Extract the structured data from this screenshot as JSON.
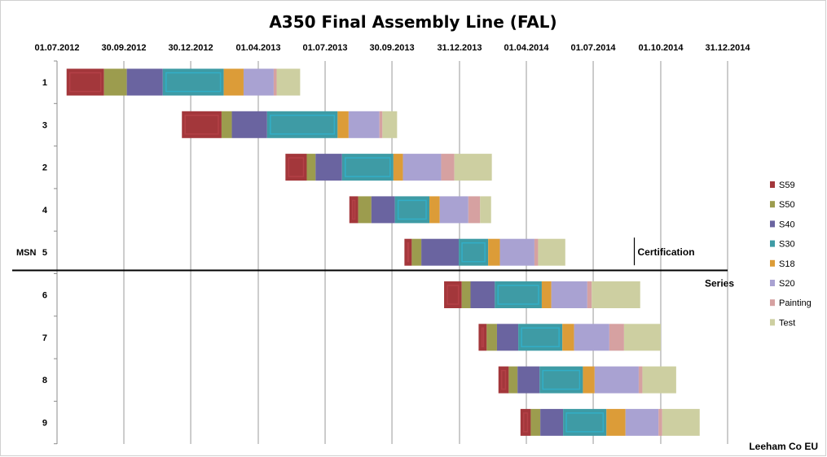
{
  "chart_data": {
    "type": "bar",
    "orientation": "horizontal-stacked-gantt",
    "title": "A350 Final Assembly Line (FAL)",
    "x_axis": {
      "tick_labels": [
        "01.07.2012",
        "30.09.2012",
        "30.12.2012",
        "01.04.2013",
        "01.07.2013",
        "30.09.2013",
        "31.12.2013",
        "01.04.2014",
        "01.07.2014",
        "01.10.2014",
        "31.12.2014"
      ],
      "range": [
        "2012-07-01",
        "2014-12-31"
      ],
      "position": "top",
      "grid": true
    },
    "y_axis": {
      "label": "MSN",
      "categories": [
        "1",
        "3",
        "2",
        "4",
        "5",
        "6",
        "7",
        "8",
        "9"
      ]
    },
    "legend": {
      "placement": "right",
      "items": [
        {
          "name": "S59",
          "color": "#a3373b"
        },
        {
          "name": "S50",
          "color": "#9c9c4e"
        },
        {
          "name": "S40",
          "color": "#6a64a0"
        },
        {
          "name": "S30",
          "color": "#3e9ba5"
        },
        {
          "name": "S18",
          "color": "#dc9c38"
        },
        {
          "name": "S20",
          "color": "#a9a2d2"
        },
        {
          "name": "Painting",
          "color": "#d6a1a1"
        },
        {
          "name": "Test",
          "color": "#cdcfa1"
        }
      ]
    },
    "series": [
      {
        "msn": "1",
        "segments": [
          {
            "stage": "S59",
            "start": "2012-07-14",
            "end": "2012-09-03"
          },
          {
            "stage": "S50",
            "start": "2012-09-03",
            "end": "2012-10-04"
          },
          {
            "stage": "S40",
            "start": "2012-10-04",
            "end": "2012-11-22"
          },
          {
            "stage": "S30",
            "start": "2012-11-22",
            "end": "2013-02-13"
          },
          {
            "stage": "S18",
            "start": "2013-02-13",
            "end": "2013-03-12"
          },
          {
            "stage": "S20",
            "start": "2013-03-12",
            "end": "2013-04-22"
          },
          {
            "stage": "Painting",
            "start": "2013-04-22",
            "end": "2013-04-26"
          },
          {
            "stage": "Test",
            "start": "2013-04-26",
            "end": "2013-05-28"
          }
        ]
      },
      {
        "msn": "3",
        "segments": [
          {
            "stage": "S59",
            "start": "2012-12-18",
            "end": "2013-02-10"
          },
          {
            "stage": "S50",
            "start": "2013-02-10",
            "end": "2013-02-24"
          },
          {
            "stage": "S40",
            "start": "2013-02-24",
            "end": "2013-04-13"
          },
          {
            "stage": "S30",
            "start": "2013-04-13",
            "end": "2013-07-18"
          },
          {
            "stage": "S18",
            "start": "2013-07-18",
            "end": "2013-08-02"
          },
          {
            "stage": "S20",
            "start": "2013-08-02",
            "end": "2013-09-13"
          },
          {
            "stage": "Painting",
            "start": "2013-09-13",
            "end": "2013-09-17"
          },
          {
            "stage": "Test",
            "start": "2013-09-17",
            "end": "2013-10-07"
          }
        ]
      },
      {
        "msn": "2",
        "segments": [
          {
            "stage": "S59",
            "start": "2013-05-08",
            "end": "2013-06-06"
          },
          {
            "stage": "S50",
            "start": "2013-06-06",
            "end": "2013-06-18"
          },
          {
            "stage": "S40",
            "start": "2013-06-18",
            "end": "2013-07-24"
          },
          {
            "stage": "S30",
            "start": "2013-07-24",
            "end": "2013-10-02"
          },
          {
            "stage": "S18",
            "start": "2013-10-02",
            "end": "2013-10-15"
          },
          {
            "stage": "S20",
            "start": "2013-10-15",
            "end": "2013-12-06"
          },
          {
            "stage": "Painting",
            "start": "2013-12-06",
            "end": "2013-12-24"
          },
          {
            "stage": "Test",
            "start": "2013-12-24",
            "end": "2014-02-13"
          }
        ]
      },
      {
        "msn": "4",
        "segments": [
          {
            "stage": "S59",
            "start": "2013-08-03",
            "end": "2013-08-15"
          },
          {
            "stage": "S50",
            "start": "2013-08-15",
            "end": "2013-09-02"
          },
          {
            "stage": "S40",
            "start": "2013-09-02",
            "end": "2013-10-04"
          },
          {
            "stage": "S30",
            "start": "2013-10-04",
            "end": "2013-11-20"
          },
          {
            "stage": "S18",
            "start": "2013-11-20",
            "end": "2013-12-04"
          },
          {
            "stage": "S20",
            "start": "2013-12-04",
            "end": "2014-01-12"
          },
          {
            "stage": "Painting",
            "start": "2014-01-12",
            "end": "2014-01-28"
          },
          {
            "stage": "Test",
            "start": "2014-01-28",
            "end": "2014-02-12"
          }
        ]
      },
      {
        "msn": "5",
        "segments": [
          {
            "stage": "S59",
            "start": "2013-10-17",
            "end": "2013-10-27"
          },
          {
            "stage": "S50",
            "start": "2013-10-27",
            "end": "2013-11-09"
          },
          {
            "stage": "S40",
            "start": "2013-11-09",
            "end": "2013-12-30"
          },
          {
            "stage": "S30",
            "start": "2013-12-30",
            "end": "2014-02-08"
          },
          {
            "stage": "S18",
            "start": "2014-02-08",
            "end": "2014-02-24"
          },
          {
            "stage": "S20",
            "start": "2014-02-24",
            "end": "2014-04-12"
          },
          {
            "stage": "Painting",
            "start": "2014-04-12",
            "end": "2014-04-17"
          },
          {
            "stage": "Test",
            "start": "2014-04-17",
            "end": "2014-05-24"
          }
        ]
      },
      {
        "msn": "6",
        "segments": [
          {
            "stage": "S59",
            "start": "2013-12-10",
            "end": "2014-01-03"
          },
          {
            "stage": "S50",
            "start": "2014-01-03",
            "end": "2014-01-15"
          },
          {
            "stage": "S40",
            "start": "2014-01-15",
            "end": "2014-02-17"
          },
          {
            "stage": "S30",
            "start": "2014-02-17",
            "end": "2014-04-22"
          },
          {
            "stage": "S18",
            "start": "2014-04-22",
            "end": "2014-05-05"
          },
          {
            "stage": "S20",
            "start": "2014-05-05",
            "end": "2014-06-23"
          },
          {
            "stage": "Painting",
            "start": "2014-06-23",
            "end": "2014-06-29"
          },
          {
            "stage": "Test",
            "start": "2014-06-29",
            "end": "2014-09-03"
          }
        ]
      },
      {
        "msn": "7",
        "segments": [
          {
            "stage": "S59",
            "start": "2014-01-26",
            "end": "2014-02-06"
          },
          {
            "stage": "S50",
            "start": "2014-02-06",
            "end": "2014-02-20"
          },
          {
            "stage": "S40",
            "start": "2014-02-20",
            "end": "2014-03-21"
          },
          {
            "stage": "S30",
            "start": "2014-03-21",
            "end": "2014-05-20"
          },
          {
            "stage": "S18",
            "start": "2014-05-20",
            "end": "2014-06-05"
          },
          {
            "stage": "S20",
            "start": "2014-06-05",
            "end": "2014-07-23"
          },
          {
            "stage": "Painting",
            "start": "2014-07-23",
            "end": "2014-08-12"
          },
          {
            "stage": "Test",
            "start": "2014-08-12",
            "end": "2014-10-01"
          }
        ]
      },
      {
        "msn": "8",
        "segments": [
          {
            "stage": "S59",
            "start": "2014-02-22",
            "end": "2014-03-08"
          },
          {
            "stage": "S50",
            "start": "2014-03-08",
            "end": "2014-03-20"
          },
          {
            "stage": "S40",
            "start": "2014-03-20",
            "end": "2014-04-19"
          },
          {
            "stage": "S30",
            "start": "2014-04-19",
            "end": "2014-06-17"
          },
          {
            "stage": "S18",
            "start": "2014-06-17",
            "end": "2014-07-03"
          },
          {
            "stage": "S20",
            "start": "2014-07-03",
            "end": "2014-09-01"
          },
          {
            "stage": "Painting",
            "start": "2014-09-01",
            "end": "2014-09-06"
          },
          {
            "stage": "Test",
            "start": "2014-09-06",
            "end": "2014-10-22"
          }
        ]
      },
      {
        "msn": "9",
        "segments": [
          {
            "stage": "S59",
            "start": "2014-03-24",
            "end": "2014-04-07"
          },
          {
            "stage": "S50",
            "start": "2014-04-07",
            "end": "2014-04-20"
          },
          {
            "stage": "S40",
            "start": "2014-04-20",
            "end": "2014-05-21"
          },
          {
            "stage": "S30",
            "start": "2014-05-21",
            "end": "2014-07-19"
          },
          {
            "stage": "S18",
            "start": "2014-07-19",
            "end": "2014-08-14"
          },
          {
            "stage": "S20",
            "start": "2014-08-14",
            "end": "2014-09-28"
          },
          {
            "stage": "Painting",
            "start": "2014-09-28",
            "end": "2014-10-03"
          },
          {
            "stage": "Test",
            "start": "2014-10-03",
            "end": "2014-11-23"
          }
        ]
      }
    ],
    "annotations": {
      "certification_label": "Certification",
      "certification_date": "2014-08-26",
      "series_label": "Series",
      "series_divider_after_msn": "5"
    },
    "source_label": "Leeham Co EU"
  }
}
